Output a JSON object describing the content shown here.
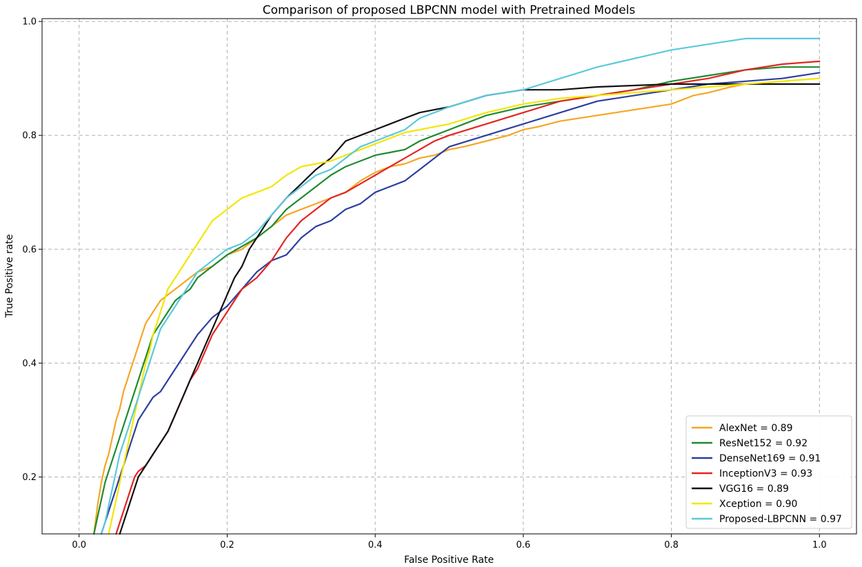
{
  "chart_data": {
    "type": "line",
    "title": "Comparison of proposed LBPCNN model with Pretrained Models",
    "xlabel": "False Positive Rate",
    "ylabel": "True Positive rate",
    "xlim": [
      -0.05,
      1.05
    ],
    "ylim": [
      0.1,
      1.005
    ],
    "x_ticks": [
      0.0,
      0.2,
      0.4,
      0.6,
      0.8,
      1.0
    ],
    "x_tick_labels": [
      "0.0",
      "0.2",
      "0.4",
      "0.6",
      "0.8",
      "1.0"
    ],
    "y_ticks": [
      0.2,
      0.4,
      0.6,
      0.8,
      1.0
    ],
    "y_tick_labels": [
      "0.2",
      "0.4",
      "0.6",
      "0.8",
      "1.0"
    ],
    "grid": true,
    "legend_position": "bottom-right",
    "series": [
      {
        "name": "AlexNet = 0.89",
        "color": "#f5a623",
        "x": [
          0.02,
          0.025,
          0.03,
          0.035,
          0.04,
          0.045,
          0.05,
          0.055,
          0.06,
          0.065,
          0.07,
          0.075,
          0.08,
          0.085,
          0.09,
          0.095,
          0.1,
          0.105,
          0.11,
          0.115,
          0.12,
          0.13,
          0.14,
          0.15,
          0.16,
          0.17,
          0.18,
          0.19,
          0.2,
          0.22,
          0.24,
          0.26,
          0.28,
          0.3,
          0.32,
          0.34,
          0.36,
          0.38,
          0.4,
          0.42,
          0.44,
          0.46,
          0.48,
          0.5,
          0.52,
          0.55,
          0.58,
          0.6,
          0.62,
          0.65,
          0.7,
          0.75,
          0.8,
          0.83,
          0.85,
          0.88,
          0.9,
          1.0
        ],
        "y": [
          0.1,
          0.15,
          0.19,
          0.22,
          0.24,
          0.27,
          0.3,
          0.32,
          0.35,
          0.37,
          0.39,
          0.41,
          0.43,
          0.45,
          0.47,
          0.48,
          0.49,
          0.5,
          0.51,
          0.515,
          0.52,
          0.53,
          0.54,
          0.55,
          0.56,
          0.565,
          0.57,
          0.58,
          0.59,
          0.6,
          0.62,
          0.64,
          0.66,
          0.67,
          0.68,
          0.69,
          0.7,
          0.72,
          0.735,
          0.745,
          0.75,
          0.76,
          0.765,
          0.775,
          0.78,
          0.79,
          0.8,
          0.81,
          0.815,
          0.825,
          0.835,
          0.845,
          0.855,
          0.87,
          0.875,
          0.885,
          0.89,
          0.89
        ]
      },
      {
        "name": "ResNet152 = 0.92",
        "color": "#1e8a2e",
        "x": [
          0.02,
          0.025,
          0.03,
          0.035,
          0.04,
          0.045,
          0.05,
          0.055,
          0.06,
          0.065,
          0.07,
          0.075,
          0.08,
          0.085,
          0.09,
          0.095,
          0.1,
          0.105,
          0.11,
          0.115,
          0.12,
          0.13,
          0.14,
          0.15,
          0.16,
          0.17,
          0.18,
          0.19,
          0.2,
          0.22,
          0.24,
          0.26,
          0.28,
          0.3,
          0.32,
          0.34,
          0.36,
          0.38,
          0.4,
          0.42,
          0.44,
          0.46,
          0.48,
          0.5,
          0.52,
          0.55,
          0.6,
          0.65,
          0.7,
          0.75,
          0.8,
          0.85,
          0.9,
          0.95,
          1.0
        ],
        "y": [
          0.1,
          0.13,
          0.16,
          0.19,
          0.21,
          0.23,
          0.25,
          0.27,
          0.29,
          0.31,
          0.33,
          0.35,
          0.37,
          0.39,
          0.41,
          0.43,
          0.45,
          0.46,
          0.47,
          0.48,
          0.49,
          0.51,
          0.52,
          0.53,
          0.55,
          0.56,
          0.57,
          0.58,
          0.59,
          0.605,
          0.62,
          0.64,
          0.67,
          0.69,
          0.71,
          0.73,
          0.745,
          0.755,
          0.765,
          0.77,
          0.775,
          0.79,
          0.8,
          0.81,
          0.82,
          0.835,
          0.85,
          0.86,
          0.87,
          0.88,
          0.895,
          0.905,
          0.915,
          0.92,
          0.92
        ]
      },
      {
        "name": "DenseNet169 = 0.91",
        "color": "#2b3fa0",
        "x": [
          0.03,
          0.035,
          0.04,
          0.045,
          0.05,
          0.055,
          0.06,
          0.065,
          0.07,
          0.075,
          0.08,
          0.085,
          0.09,
          0.1,
          0.11,
          0.12,
          0.13,
          0.14,
          0.15,
          0.16,
          0.17,
          0.18,
          0.19,
          0.2,
          0.22,
          0.24,
          0.26,
          0.28,
          0.3,
          0.32,
          0.34,
          0.36,
          0.38,
          0.4,
          0.42,
          0.44,
          0.46,
          0.48,
          0.5,
          0.55,
          0.6,
          0.65,
          0.7,
          0.75,
          0.8,
          0.85,
          0.9,
          0.95,
          1.0
        ],
        "y": [
          0.1,
          0.12,
          0.14,
          0.16,
          0.18,
          0.2,
          0.22,
          0.24,
          0.26,
          0.28,
          0.3,
          0.31,
          0.32,
          0.34,
          0.35,
          0.37,
          0.39,
          0.41,
          0.43,
          0.45,
          0.465,
          0.48,
          0.49,
          0.5,
          0.53,
          0.56,
          0.58,
          0.59,
          0.62,
          0.64,
          0.65,
          0.67,
          0.68,
          0.7,
          0.71,
          0.72,
          0.74,
          0.76,
          0.78,
          0.8,
          0.82,
          0.84,
          0.86,
          0.87,
          0.88,
          0.89,
          0.895,
          0.9,
          0.91
        ]
      },
      {
        "name": "InceptionV3 = 0.93",
        "color": "#e52421",
        "x": [
          0.05,
          0.055,
          0.06,
          0.065,
          0.07,
          0.075,
          0.08,
          0.09,
          0.1,
          0.11,
          0.12,
          0.13,
          0.14,
          0.15,
          0.16,
          0.17,
          0.18,
          0.19,
          0.2,
          0.21,
          0.22,
          0.24,
          0.26,
          0.28,
          0.3,
          0.32,
          0.34,
          0.36,
          0.38,
          0.4,
          0.42,
          0.44,
          0.46,
          0.48,
          0.5,
          0.55,
          0.6,
          0.65,
          0.7,
          0.75,
          0.8,
          0.85,
          0.9,
          0.95,
          1.0
        ],
        "y": [
          0.1,
          0.12,
          0.14,
          0.16,
          0.18,
          0.2,
          0.21,
          0.22,
          0.24,
          0.26,
          0.28,
          0.31,
          0.34,
          0.37,
          0.39,
          0.42,
          0.45,
          0.47,
          0.49,
          0.51,
          0.53,
          0.55,
          0.58,
          0.62,
          0.65,
          0.67,
          0.69,
          0.7,
          0.715,
          0.73,
          0.745,
          0.76,
          0.775,
          0.79,
          0.8,
          0.82,
          0.84,
          0.86,
          0.87,
          0.88,
          0.89,
          0.9,
          0.915,
          0.925,
          0.93
        ]
      },
      {
        "name": "VGG16 = 0.89",
        "color": "#111111",
        "x": [
          0.055,
          0.06,
          0.065,
          0.07,
          0.075,
          0.08,
          0.09,
          0.1,
          0.11,
          0.12,
          0.13,
          0.14,
          0.15,
          0.16,
          0.17,
          0.18,
          0.19,
          0.2,
          0.21,
          0.22,
          0.23,
          0.24,
          0.25,
          0.26,
          0.28,
          0.3,
          0.32,
          0.34,
          0.36,
          0.38,
          0.4,
          0.42,
          0.44,
          0.46,
          0.48,
          0.5,
          0.55,
          0.6,
          0.65,
          0.7,
          0.8,
          0.9,
          1.0
        ],
        "y": [
          0.1,
          0.12,
          0.14,
          0.16,
          0.18,
          0.2,
          0.22,
          0.24,
          0.26,
          0.28,
          0.31,
          0.34,
          0.37,
          0.4,
          0.43,
          0.46,
          0.49,
          0.52,
          0.55,
          0.57,
          0.6,
          0.62,
          0.64,
          0.66,
          0.69,
          0.715,
          0.74,
          0.76,
          0.79,
          0.8,
          0.81,
          0.82,
          0.83,
          0.84,
          0.845,
          0.85,
          0.87,
          0.88,
          0.88,
          0.885,
          0.89,
          0.89,
          0.89
        ]
      },
      {
        "name": "Xception = 0.90",
        "color": "#f2e600",
        "x": [
          0.04,
          0.045,
          0.05,
          0.055,
          0.06,
          0.065,
          0.07,
          0.075,
          0.08,
          0.085,
          0.09,
          0.095,
          0.1,
          0.105,
          0.11,
          0.115,
          0.12,
          0.13,
          0.14,
          0.15,
          0.16,
          0.17,
          0.18,
          0.19,
          0.2,
          0.22,
          0.24,
          0.26,
          0.28,
          0.3,
          0.32,
          0.34,
          0.36,
          0.38,
          0.4,
          0.42,
          0.44,
          0.46,
          0.48,
          0.5,
          0.55,
          0.6,
          0.65,
          0.7,
          0.8,
          0.9,
          1.0
        ],
        "y": [
          0.1,
          0.13,
          0.16,
          0.19,
          0.22,
          0.25,
          0.28,
          0.31,
          0.34,
          0.37,
          0.4,
          0.42,
          0.45,
          0.47,
          0.49,
          0.51,
          0.53,
          0.55,
          0.57,
          0.59,
          0.61,
          0.63,
          0.65,
          0.66,
          0.67,
          0.69,
          0.7,
          0.71,
          0.73,
          0.745,
          0.75,
          0.755,
          0.765,
          0.775,
          0.785,
          0.795,
          0.805,
          0.81,
          0.815,
          0.82,
          0.84,
          0.855,
          0.865,
          0.87,
          0.88,
          0.89,
          0.9
        ]
      },
      {
        "name": "Proposed-LBPCNN = 0.97",
        "color": "#5bc8dc",
        "x": [
          0.03,
          0.035,
          0.04,
          0.045,
          0.05,
          0.055,
          0.06,
          0.065,
          0.07,
          0.075,
          0.08,
          0.085,
          0.09,
          0.095,
          0.1,
          0.105,
          0.11,
          0.12,
          0.13,
          0.14,
          0.15,
          0.16,
          0.17,
          0.18,
          0.19,
          0.2,
          0.22,
          0.24,
          0.26,
          0.28,
          0.3,
          0.32,
          0.34,
          0.36,
          0.38,
          0.4,
          0.42,
          0.44,
          0.46,
          0.48,
          0.5,
          0.55,
          0.6,
          0.65,
          0.7,
          0.75,
          0.8,
          0.85,
          0.9,
          1.0
        ],
        "y": [
          0.1,
          0.12,
          0.15,
          0.18,
          0.21,
          0.24,
          0.26,
          0.28,
          0.3,
          0.32,
          0.34,
          0.36,
          0.38,
          0.4,
          0.42,
          0.44,
          0.46,
          0.48,
          0.5,
          0.52,
          0.54,
          0.56,
          0.57,
          0.58,
          0.59,
          0.6,
          0.61,
          0.63,
          0.66,
          0.69,
          0.71,
          0.73,
          0.74,
          0.76,
          0.78,
          0.79,
          0.8,
          0.81,
          0.83,
          0.84,
          0.85,
          0.87,
          0.88,
          0.9,
          0.92,
          0.935,
          0.95,
          0.96,
          0.97,
          0.97
        ]
      }
    ]
  }
}
